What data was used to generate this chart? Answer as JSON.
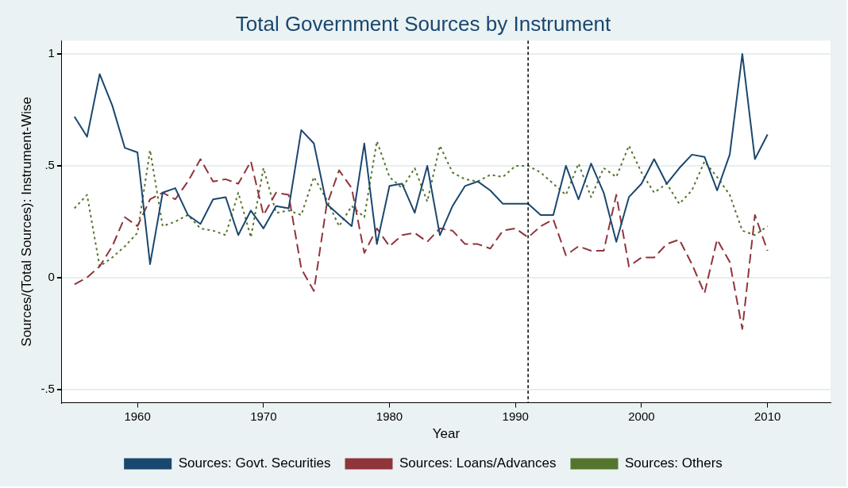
{
  "chart_data": {
    "type": "line",
    "title": "Total Government Sources by Instrument",
    "xlabel": "Year",
    "ylabel": "Sources/(Total Sources): Instrument-Wise",
    "x": [
      1955,
      1956,
      1957,
      1958,
      1959,
      1960,
      1961,
      1962,
      1963,
      1964,
      1965,
      1966,
      1967,
      1968,
      1969,
      1970,
      1971,
      1972,
      1973,
      1974,
      1975,
      1976,
      1977,
      1978,
      1979,
      1980,
      1981,
      1982,
      1983,
      1984,
      1985,
      1986,
      1987,
      1988,
      1989,
      1990,
      1991,
      1992,
      1993,
      1994,
      1995,
      1996,
      1997,
      1998,
      1999,
      2000,
      2001,
      2002,
      2003,
      2004,
      2005,
      2006,
      2007,
      2008,
      2009,
      2010
    ],
    "series": [
      {
        "name": "Sources: Govt. Securities",
        "color": "#1a476f",
        "line_style": "solid",
        "values": [
          0.72,
          0.63,
          0.91,
          0.77,
          0.58,
          0.56,
          0.06,
          0.38,
          0.4,
          0.28,
          0.24,
          0.35,
          0.36,
          0.19,
          0.3,
          0.22,
          0.32,
          0.31,
          0.66,
          0.6,
          0.33,
          0.28,
          0.23,
          0.6,
          0.15,
          0.41,
          0.42,
          0.29,
          0.5,
          0.19,
          0.32,
          0.41,
          0.43,
          0.39,
          0.33,
          0.33,
          0.33,
          0.28,
          0.28,
          0.5,
          0.35,
          0.51,
          0.38,
          0.16,
          0.36,
          0.42,
          0.53,
          0.42,
          0.49,
          0.55,
          0.54,
          0.39,
          0.55,
          1.0,
          0.53,
          0.64
        ]
      },
      {
        "name": "Sources: Loans/Advances",
        "color": "#90353b",
        "line_style": "dashed",
        "values": [
          -0.03,
          0,
          0.05,
          0.14,
          0.27,
          0.23,
          0.35,
          0.38,
          0.35,
          0.43,
          0.53,
          0.43,
          0.44,
          0.42,
          0.52,
          0.28,
          0.38,
          0.37,
          0.04,
          -0.06,
          0.32,
          0.48,
          0.4,
          0.11,
          0.22,
          0.14,
          0.19,
          0.2,
          0.16,
          0.22,
          0.21,
          0.15,
          0.15,
          0.13,
          0.21,
          0.22,
          0.18,
          0.23,
          0.26,
          0.1,
          0.14,
          0.12,
          0.12,
          0.37,
          0.05,
          0.09,
          0.09,
          0.15,
          0.17,
          0.06,
          -0.07,
          0.17,
          0.07,
          -0.23,
          0.28,
          0.12
        ]
      },
      {
        "name": "Sources: Others",
        "color": "#55752f",
        "line_style": "dotted",
        "values": [
          0.31,
          0.37,
          0.05,
          0.09,
          0.14,
          0.2,
          0.57,
          0.23,
          0.25,
          0.28,
          0.22,
          0.21,
          0.19,
          0.38,
          0.18,
          0.49,
          0.29,
          0.3,
          0.28,
          0.45,
          0.35,
          0.23,
          0.32,
          0.27,
          0.61,
          0.45,
          0.4,
          0.49,
          0.34,
          0.59,
          0.47,
          0.44,
          0.43,
          0.46,
          0.45,
          0.5,
          0.5,
          0.47,
          0.42,
          0.37,
          0.51,
          0.36,
          0.49,
          0.45,
          0.59,
          0.47,
          0.38,
          0.42,
          0.33,
          0.39,
          0.52,
          0.45,
          0.37,
          0.21,
          0.19,
          0.23
        ]
      }
    ],
    "xlim": [
      1954,
      2015
    ],
    "xticks": [
      1960,
      1970,
      1980,
      1990,
      2000,
      2010
    ],
    "ylim": [
      -0.56,
      1.06
    ],
    "yticks": [
      {
        "value": -0.5,
        "label": "-.5"
      },
      {
        "value": 0,
        "label": "0"
      },
      {
        "value": 0.5,
        "label": ".5"
      },
      {
        "value": 1,
        "label": "1"
      }
    ],
    "ref_lines": [
      {
        "axis": "x",
        "value": 1991,
        "color": "#000000",
        "line_style": "dashed"
      }
    ],
    "grid": "y",
    "legend": "bottom",
    "marker": "none"
  }
}
